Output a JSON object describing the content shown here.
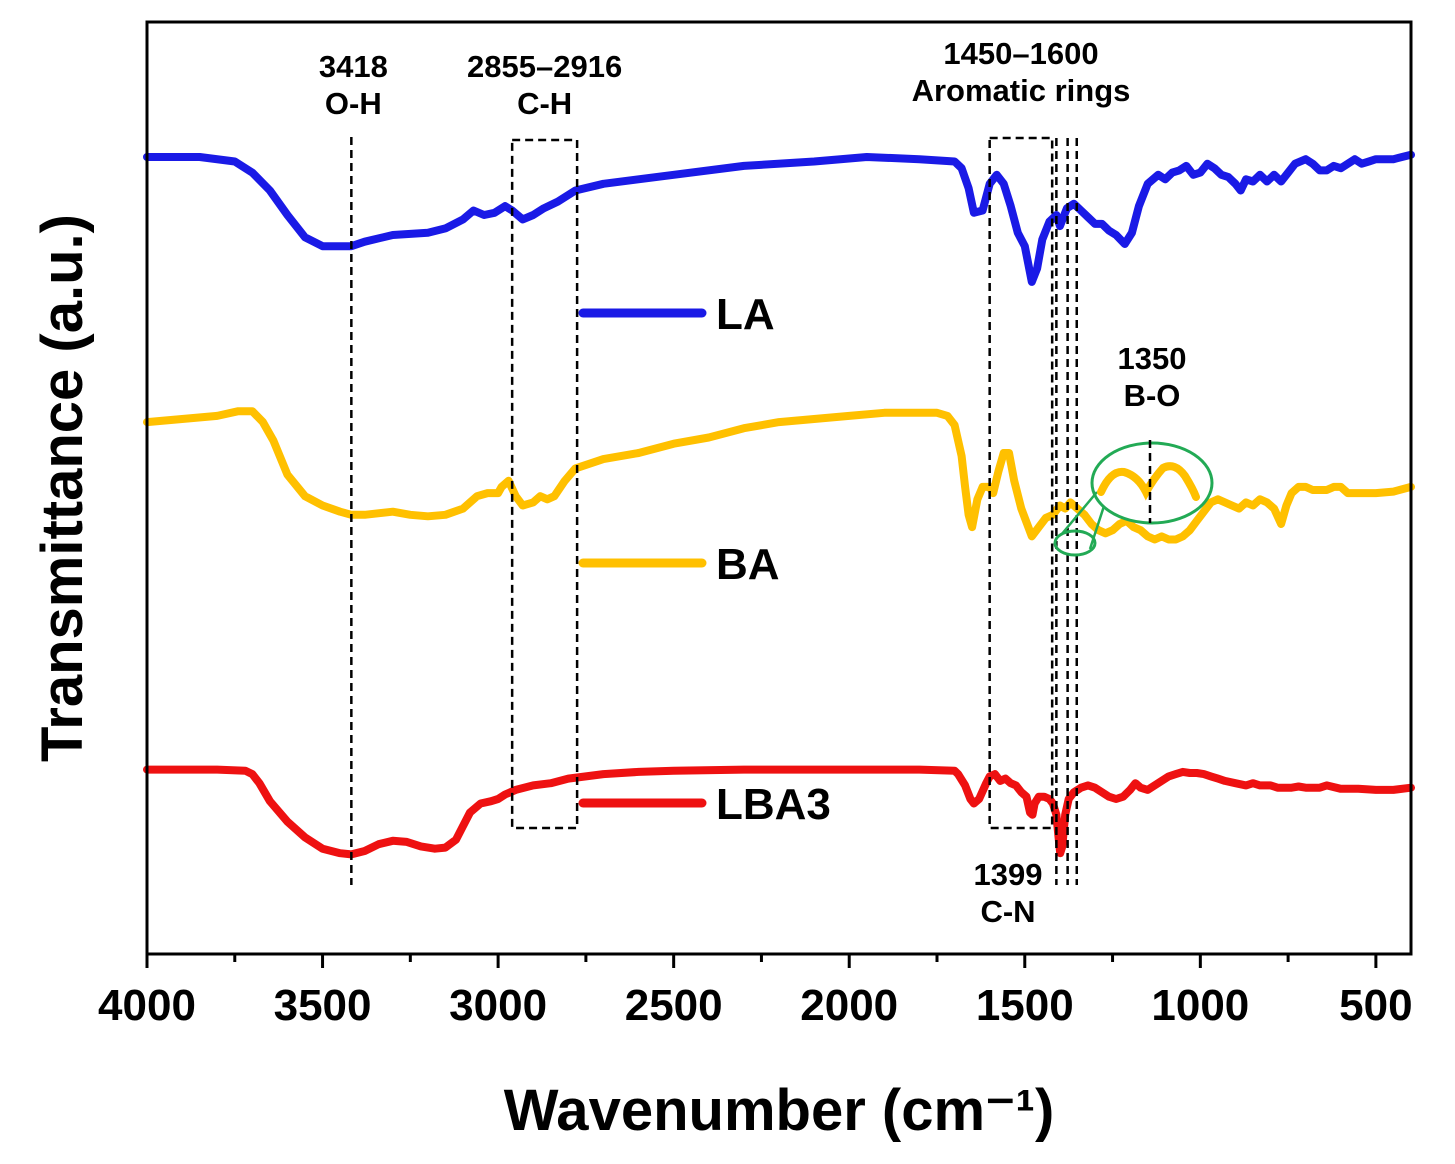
{
  "chart_data": {
    "type": "line",
    "xlabel": "Wavenumber (cm⁻¹)",
    "ylabel": "Transmittance (a.u.)",
    "xlim": [
      4000,
      400
    ],
    "x_reversed": true,
    "y_ticks_visible": false,
    "grid": false,
    "legend_position": "center",
    "xticks": [
      4000,
      3500,
      3000,
      2500,
      2000,
      1500,
      1000,
      500
    ],
    "xtick_labels": [
      "4000",
      "3500",
      "3000",
      "2500",
      "2000",
      "1500",
      "1000",
      "500"
    ],
    "series": [
      {
        "name": "LA",
        "color": "#1a1ae6",
        "points": [
          [
            4000,
            100
          ],
          [
            3850,
            100
          ],
          [
            3750,
            98
          ],
          [
            3700,
            93
          ],
          [
            3650,
            85
          ],
          [
            3600,
            74
          ],
          [
            3550,
            64
          ],
          [
            3500,
            60
          ],
          [
            3418,
            60
          ],
          [
            3380,
            62
          ],
          [
            3300,
            65
          ],
          [
            3200,
            66
          ],
          [
            3150,
            68
          ],
          [
            3100,
            72
          ],
          [
            3070,
            76
          ],
          [
            3040,
            74
          ],
          [
            3010,
            75
          ],
          [
            2980,
            78
          ],
          [
            2960,
            76
          ],
          [
            2930,
            72
          ],
          [
            2900,
            74
          ],
          [
            2870,
            77
          ],
          [
            2830,
            80
          ],
          [
            2780,
            85
          ],
          [
            2700,
            88
          ],
          [
            2500,
            92
          ],
          [
            2300,
            96
          ],
          [
            2100,
            98
          ],
          [
            1950,
            100
          ],
          [
            1800,
            99
          ],
          [
            1700,
            98
          ],
          [
            1680,
            95
          ],
          [
            1660,
            86
          ],
          [
            1645,
            75
          ],
          [
            1620,
            76
          ],
          [
            1600,
            88
          ],
          [
            1580,
            92
          ],
          [
            1560,
            88
          ],
          [
            1540,
            78
          ],
          [
            1520,
            66
          ],
          [
            1500,
            60
          ],
          [
            1480,
            44
          ],
          [
            1465,
            50
          ],
          [
            1450,
            63
          ],
          [
            1430,
            71
          ],
          [
            1410,
            74
          ],
          [
            1400,
            69
          ],
          [
            1380,
            77
          ],
          [
            1360,
            79
          ],
          [
            1340,
            76
          ],
          [
            1320,
            73
          ],
          [
            1300,
            70
          ],
          [
            1280,
            70
          ],
          [
            1260,
            67
          ],
          [
            1240,
            65
          ],
          [
            1215,
            61
          ],
          [
            1195,
            66
          ],
          [
            1175,
            78
          ],
          [
            1150,
            88
          ],
          [
            1120,
            92
          ],
          [
            1100,
            90
          ],
          [
            1080,
            93
          ],
          [
            1060,
            94
          ],
          [
            1040,
            96
          ],
          [
            1020,
            92
          ],
          [
            1000,
            93
          ],
          [
            980,
            97
          ],
          [
            960,
            95
          ],
          [
            940,
            92
          ],
          [
            920,
            91
          ],
          [
            900,
            88
          ],
          [
            885,
            85
          ],
          [
            870,
            90
          ],
          [
            850,
            89
          ],
          [
            830,
            92
          ],
          [
            810,
            89
          ],
          [
            790,
            92
          ],
          [
            770,
            89
          ],
          [
            750,
            93
          ],
          [
            730,
            97
          ],
          [
            700,
            99
          ],
          [
            680,
            97
          ],
          [
            660,
            94
          ],
          [
            640,
            94
          ],
          [
            620,
            96
          ],
          [
            600,
            95
          ],
          [
            580,
            97
          ],
          [
            560,
            99
          ],
          [
            540,
            97
          ],
          [
            520,
            98
          ],
          [
            500,
            99
          ],
          [
            450,
            99
          ],
          [
            400,
            101
          ]
        ]
      },
      {
        "name": "BA",
        "color": "#ffc000",
        "points": [
          [
            4000,
            66
          ],
          [
            3900,
            67
          ],
          [
            3800,
            68
          ],
          [
            3740,
            69.5
          ],
          [
            3700,
            69.5
          ],
          [
            3670,
            66
          ],
          [
            3640,
            60
          ],
          [
            3600,
            49
          ],
          [
            3550,
            42
          ],
          [
            3500,
            39
          ],
          [
            3450,
            37
          ],
          [
            3418,
            36
          ],
          [
            3380,
            36
          ],
          [
            3300,
            37
          ],
          [
            3250,
            36
          ],
          [
            3200,
            35.5
          ],
          [
            3150,
            36
          ],
          [
            3100,
            38
          ],
          [
            3060,
            42
          ],
          [
            3030,
            43
          ],
          [
            3000,
            43
          ],
          [
            2990,
            45
          ],
          [
            2970,
            47
          ],
          [
            2950,
            42
          ],
          [
            2930,
            39
          ],
          [
            2900,
            40
          ],
          [
            2880,
            42
          ],
          [
            2860,
            41
          ],
          [
            2840,
            42
          ],
          [
            2810,
            47
          ],
          [
            2780,
            51
          ],
          [
            2700,
            54
          ],
          [
            2600,
            56
          ],
          [
            2500,
            59
          ],
          [
            2400,
            61
          ],
          [
            2300,
            64
          ],
          [
            2200,
            66
          ],
          [
            2100,
            67
          ],
          [
            2000,
            68
          ],
          [
            1900,
            69
          ],
          [
            1800,
            69
          ],
          [
            1750,
            69
          ],
          [
            1720,
            68
          ],
          [
            1700,
            65
          ],
          [
            1680,
            55
          ],
          [
            1670,
            45
          ],
          [
            1660,
            36
          ],
          [
            1650,
            32
          ],
          [
            1635,
            41
          ],
          [
            1620,
            45
          ],
          [
            1600,
            45
          ],
          [
            1590,
            43
          ],
          [
            1575,
            50
          ],
          [
            1560,
            56
          ],
          [
            1545,
            56
          ],
          [
            1530,
            47
          ],
          [
            1510,
            38
          ],
          [
            1490,
            32
          ],
          [
            1480,
            29
          ],
          [
            1460,
            32
          ],
          [
            1440,
            35
          ],
          [
            1420,
            36
          ],
          [
            1400,
            39
          ],
          [
            1385,
            38
          ],
          [
            1370,
            40
          ],
          [
            1350,
            38
          ],
          [
            1330,
            36
          ],
          [
            1310,
            33
          ],
          [
            1290,
            31
          ],
          [
            1270,
            30
          ],
          [
            1250,
            31
          ],
          [
            1230,
            33
          ],
          [
            1210,
            34
          ],
          [
            1190,
            32
          ],
          [
            1170,
            31
          ],
          [
            1150,
            29
          ],
          [
            1130,
            28
          ],
          [
            1110,
            29
          ],
          [
            1090,
            28
          ],
          [
            1070,
            28
          ],
          [
            1050,
            29
          ],
          [
            1030,
            31
          ],
          [
            1010,
            34
          ],
          [
            990,
            37
          ],
          [
            970,
            40
          ],
          [
            950,
            41
          ],
          [
            930,
            40
          ],
          [
            910,
            39
          ],
          [
            890,
            38
          ],
          [
            870,
            40
          ],
          [
            850,
            39
          ],
          [
            830,
            41
          ],
          [
            810,
            40
          ],
          [
            790,
            38
          ],
          [
            770,
            33
          ],
          [
            755,
            39
          ],
          [
            740,
            43
          ],
          [
            720,
            45
          ],
          [
            700,
            45
          ],
          [
            680,
            44
          ],
          [
            660,
            44
          ],
          [
            640,
            44
          ],
          [
            620,
            45
          ],
          [
            600,
            45
          ],
          [
            580,
            43
          ],
          [
            560,
            43
          ],
          [
            540,
            43
          ],
          [
            520,
            43
          ],
          [
            500,
            43
          ],
          [
            450,
            43.5
          ],
          [
            400,
            45
          ]
        ]
      },
      {
        "name": "LBA3",
        "color": "#ee1111",
        "points": [
          [
            4000,
            40
          ],
          [
            3800,
            40
          ],
          [
            3720,
            39.5
          ],
          [
            3700,
            38
          ],
          [
            3680,
            34
          ],
          [
            3650,
            26
          ],
          [
            3600,
            17
          ],
          [
            3550,
            10
          ],
          [
            3500,
            5
          ],
          [
            3450,
            3
          ],
          [
            3418,
            2.5
          ],
          [
            3380,
            4
          ],
          [
            3340,
            7
          ],
          [
            3300,
            8.5
          ],
          [
            3260,
            8
          ],
          [
            3220,
            6
          ],
          [
            3180,
            5
          ],
          [
            3150,
            5.5
          ],
          [
            3120,
            9
          ],
          [
            3100,
            15
          ],
          [
            3080,
            21
          ],
          [
            3050,
            25
          ],
          [
            3020,
            26
          ],
          [
            3000,
            27
          ],
          [
            2980,
            29
          ],
          [
            2950,
            31
          ],
          [
            2900,
            33
          ],
          [
            2850,
            34
          ],
          [
            2800,
            36
          ],
          [
            2750,
            37
          ],
          [
            2700,
            38
          ],
          [
            2600,
            39
          ],
          [
            2500,
            39.5
          ],
          [
            2300,
            40
          ],
          [
            2000,
            40
          ],
          [
            1800,
            40
          ],
          [
            1700,
            39.5
          ],
          [
            1690,
            38
          ],
          [
            1670,
            33
          ],
          [
            1655,
            27
          ],
          [
            1645,
            25
          ],
          [
            1630,
            27
          ],
          [
            1610,
            34
          ],
          [
            1600,
            37
          ],
          [
            1585,
            38
          ],
          [
            1570,
            35
          ],
          [
            1555,
            36
          ],
          [
            1540,
            34
          ],
          [
            1525,
            33
          ],
          [
            1510,
            30
          ],
          [
            1495,
            28
          ],
          [
            1485,
            21
          ],
          [
            1478,
            20
          ],
          [
            1472,
            25
          ],
          [
            1460,
            28
          ],
          [
            1445,
            28
          ],
          [
            1430,
            27
          ],
          [
            1420,
            25
          ],
          [
            1410,
            20
          ],
          [
            1405,
            12
          ],
          [
            1399,
            3
          ],
          [
            1393,
            6
          ],
          [
            1385,
            20
          ],
          [
            1375,
            27
          ],
          [
            1360,
            30
          ],
          [
            1340,
            32
          ],
          [
            1320,
            33
          ],
          [
            1300,
            32
          ],
          [
            1280,
            30
          ],
          [
            1260,
            28
          ],
          [
            1240,
            27
          ],
          [
            1220,
            28
          ],
          [
            1200,
            31
          ],
          [
            1185,
            34
          ],
          [
            1170,
            32
          ],
          [
            1150,
            31
          ],
          [
            1130,
            33
          ],
          [
            1110,
            35
          ],
          [
            1090,
            37
          ],
          [
            1070,
            38
          ],
          [
            1050,
            39
          ],
          [
            1030,
            38.5
          ],
          [
            1010,
            38.5
          ],
          [
            990,
            38
          ],
          [
            970,
            37
          ],
          [
            950,
            36
          ],
          [
            930,
            35
          ],
          [
            900,
            34
          ],
          [
            870,
            33
          ],
          [
            850,
            34
          ],
          [
            830,
            33
          ],
          [
            800,
            33
          ],
          [
            780,
            32
          ],
          [
            760,
            32
          ],
          [
            740,
            32
          ],
          [
            720,
            32.5
          ],
          [
            700,
            32
          ],
          [
            680,
            32
          ],
          [
            660,
            32
          ],
          [
            640,
            33
          ],
          [
            600,
            31.5
          ],
          [
            550,
            31.5
          ],
          [
            500,
            31
          ],
          [
            450,
            31
          ],
          [
            400,
            32
          ]
        ]
      }
    ],
    "annotations": [
      {
        "lines": [
          "3418",
          "O-H"
        ],
        "x": 3418
      },
      {
        "lines": [
          "2855–2916",
          "C-H"
        ],
        "x_range": [
          2916,
          2855
        ]
      },
      {
        "lines": [
          "1450–1600",
          "Aromatic rings"
        ],
        "x_range": [
          1600,
          1450
        ]
      },
      {
        "lines": [
          "1399",
          "C-N"
        ],
        "x": 1399
      },
      {
        "lines": [
          "1350",
          "B-O"
        ],
        "x": 1350
      }
    ]
  }
}
